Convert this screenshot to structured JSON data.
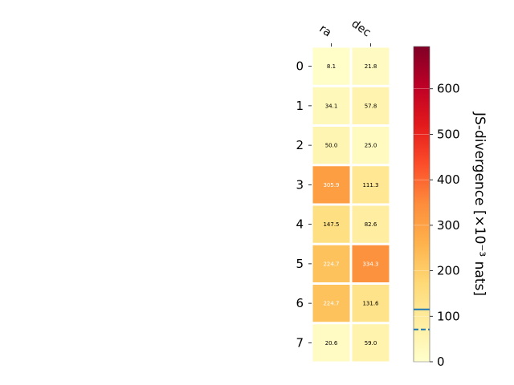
{
  "chart_data": {
    "type": "heatmap",
    "columns": [
      "ra",
      "dec"
    ],
    "rows": [
      "0",
      "1",
      "2",
      "3",
      "4",
      "5",
      "6",
      "7"
    ],
    "values": [
      [
        8.1,
        21.8
      ],
      [
        34.1,
        57.8
      ],
      [
        50.0,
        25.0
      ],
      [
        305.9,
        111.3
      ],
      [
        147.5,
        82.6
      ],
      [
        224.7,
        334.3
      ],
      [
        224.7,
        131.6
      ],
      [
        20.6,
        59.0
      ]
    ],
    "cell_labels": [
      [
        "8.1",
        "21.8"
      ],
      [
        "34.1",
        "57.8"
      ],
      [
        "50.0",
        "25.0"
      ],
      [
        "305.9",
        "111.3"
      ],
      [
        "147.5",
        "82.6"
      ],
      [
        "224.7",
        "334.3"
      ],
      [
        "224.7",
        "131.6"
      ],
      [
        "20.6",
        "59.0"
      ]
    ],
    "colorbar": {
      "label": "JS-divergence [×10⁻³ nats]",
      "colormap": "YlOrRd",
      "range": [
        0,
        693
      ],
      "ticks": [
        0,
        100,
        200,
        300,
        400,
        500,
        600
      ],
      "tick_labels": [
        "0",
        "100",
        "200",
        "300",
        "400",
        "500",
        "600"
      ],
      "reference_lines": [
        {
          "value": 115,
          "style": "solid",
          "color": "#1f77b4"
        },
        {
          "value": 71,
          "style": "dashed",
          "color": "#1f77b4"
        }
      ]
    },
    "grid": false,
    "legend": "none"
  }
}
